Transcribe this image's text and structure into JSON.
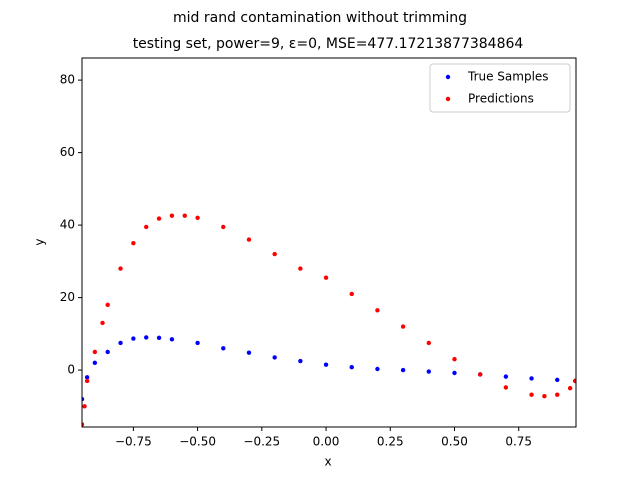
{
  "chart_data": {
    "type": "scatter",
    "title": "mid rand contamination without trimming",
    "subtitle": "testing set, power=9, ε=0, MSE=477.17213877384864",
    "x_label": "x",
    "y_label": "y",
    "xlim": [
      -0.95,
      0.973
    ],
    "ylim": [
      -15.7,
      86.1
    ],
    "xticks": [
      {
        "value": -0.75,
        "label": "−0.75"
      },
      {
        "value": -0.5,
        "label": "−0.50"
      },
      {
        "value": -0.25,
        "label": "−0.25"
      },
      {
        "value": 0,
        "label": "0.00"
      },
      {
        "value": 0.25,
        "label": "0.25"
      },
      {
        "value": 0.5,
        "label": "0.50"
      },
      {
        "value": 0.75,
        "label": "0.75"
      }
    ],
    "yticks": [
      0,
      20,
      40,
      60,
      80
    ],
    "legend": "upper right",
    "series": [
      {
        "name": "True Samples",
        "color": "#0000ff",
        "x": [
          -0.95,
          -0.93,
          -0.9,
          -0.85,
          -0.8,
          -0.75,
          -0.7,
          -0.65,
          -0.6,
          -0.5,
          -0.4,
          -0.3,
          -0.2,
          -0.1,
          0,
          0.1,
          0.2,
          0.3,
          0.4,
          0.5,
          0.6,
          0.7,
          0.8,
          0.9,
          0.97
        ],
        "values": [
          -8,
          -2,
          2,
          5,
          7.5,
          8.7,
          9,
          8.9,
          8.5,
          7.5,
          6,
          4.8,
          3.5,
          2.5,
          1.5,
          0.8,
          0.3,
          0,
          -0.4,
          -0.8,
          -1.2,
          -1.8,
          -2.3,
          -2.7,
          -3
        ]
      },
      {
        "name": "Predictions",
        "color": "#ff0000",
        "x": [
          -0.95,
          -0.94,
          -0.93,
          -0.9,
          -0.87,
          -0.85,
          -0.8,
          -0.75,
          -0.7,
          -0.65,
          -0.6,
          -0.55,
          -0.5,
          -0.4,
          -0.3,
          -0.2,
          -0.1,
          0,
          0.1,
          0.2,
          0.3,
          0.4,
          0.5,
          0.6,
          0.7,
          0.8,
          0.85,
          0.9,
          0.95,
          0.97
        ],
        "values": [
          -15,
          -10,
          -3,
          5,
          13,
          18,
          28,
          35,
          39.5,
          41.8,
          42.6,
          42.6,
          42,
          39.5,
          36,
          32,
          28,
          25.5,
          21,
          16.5,
          12,
          7.5,
          3,
          -1.2,
          -4.8,
          -6.8,
          -7.2,
          -6.8,
          -5,
          -3
        ]
      }
    ]
  }
}
